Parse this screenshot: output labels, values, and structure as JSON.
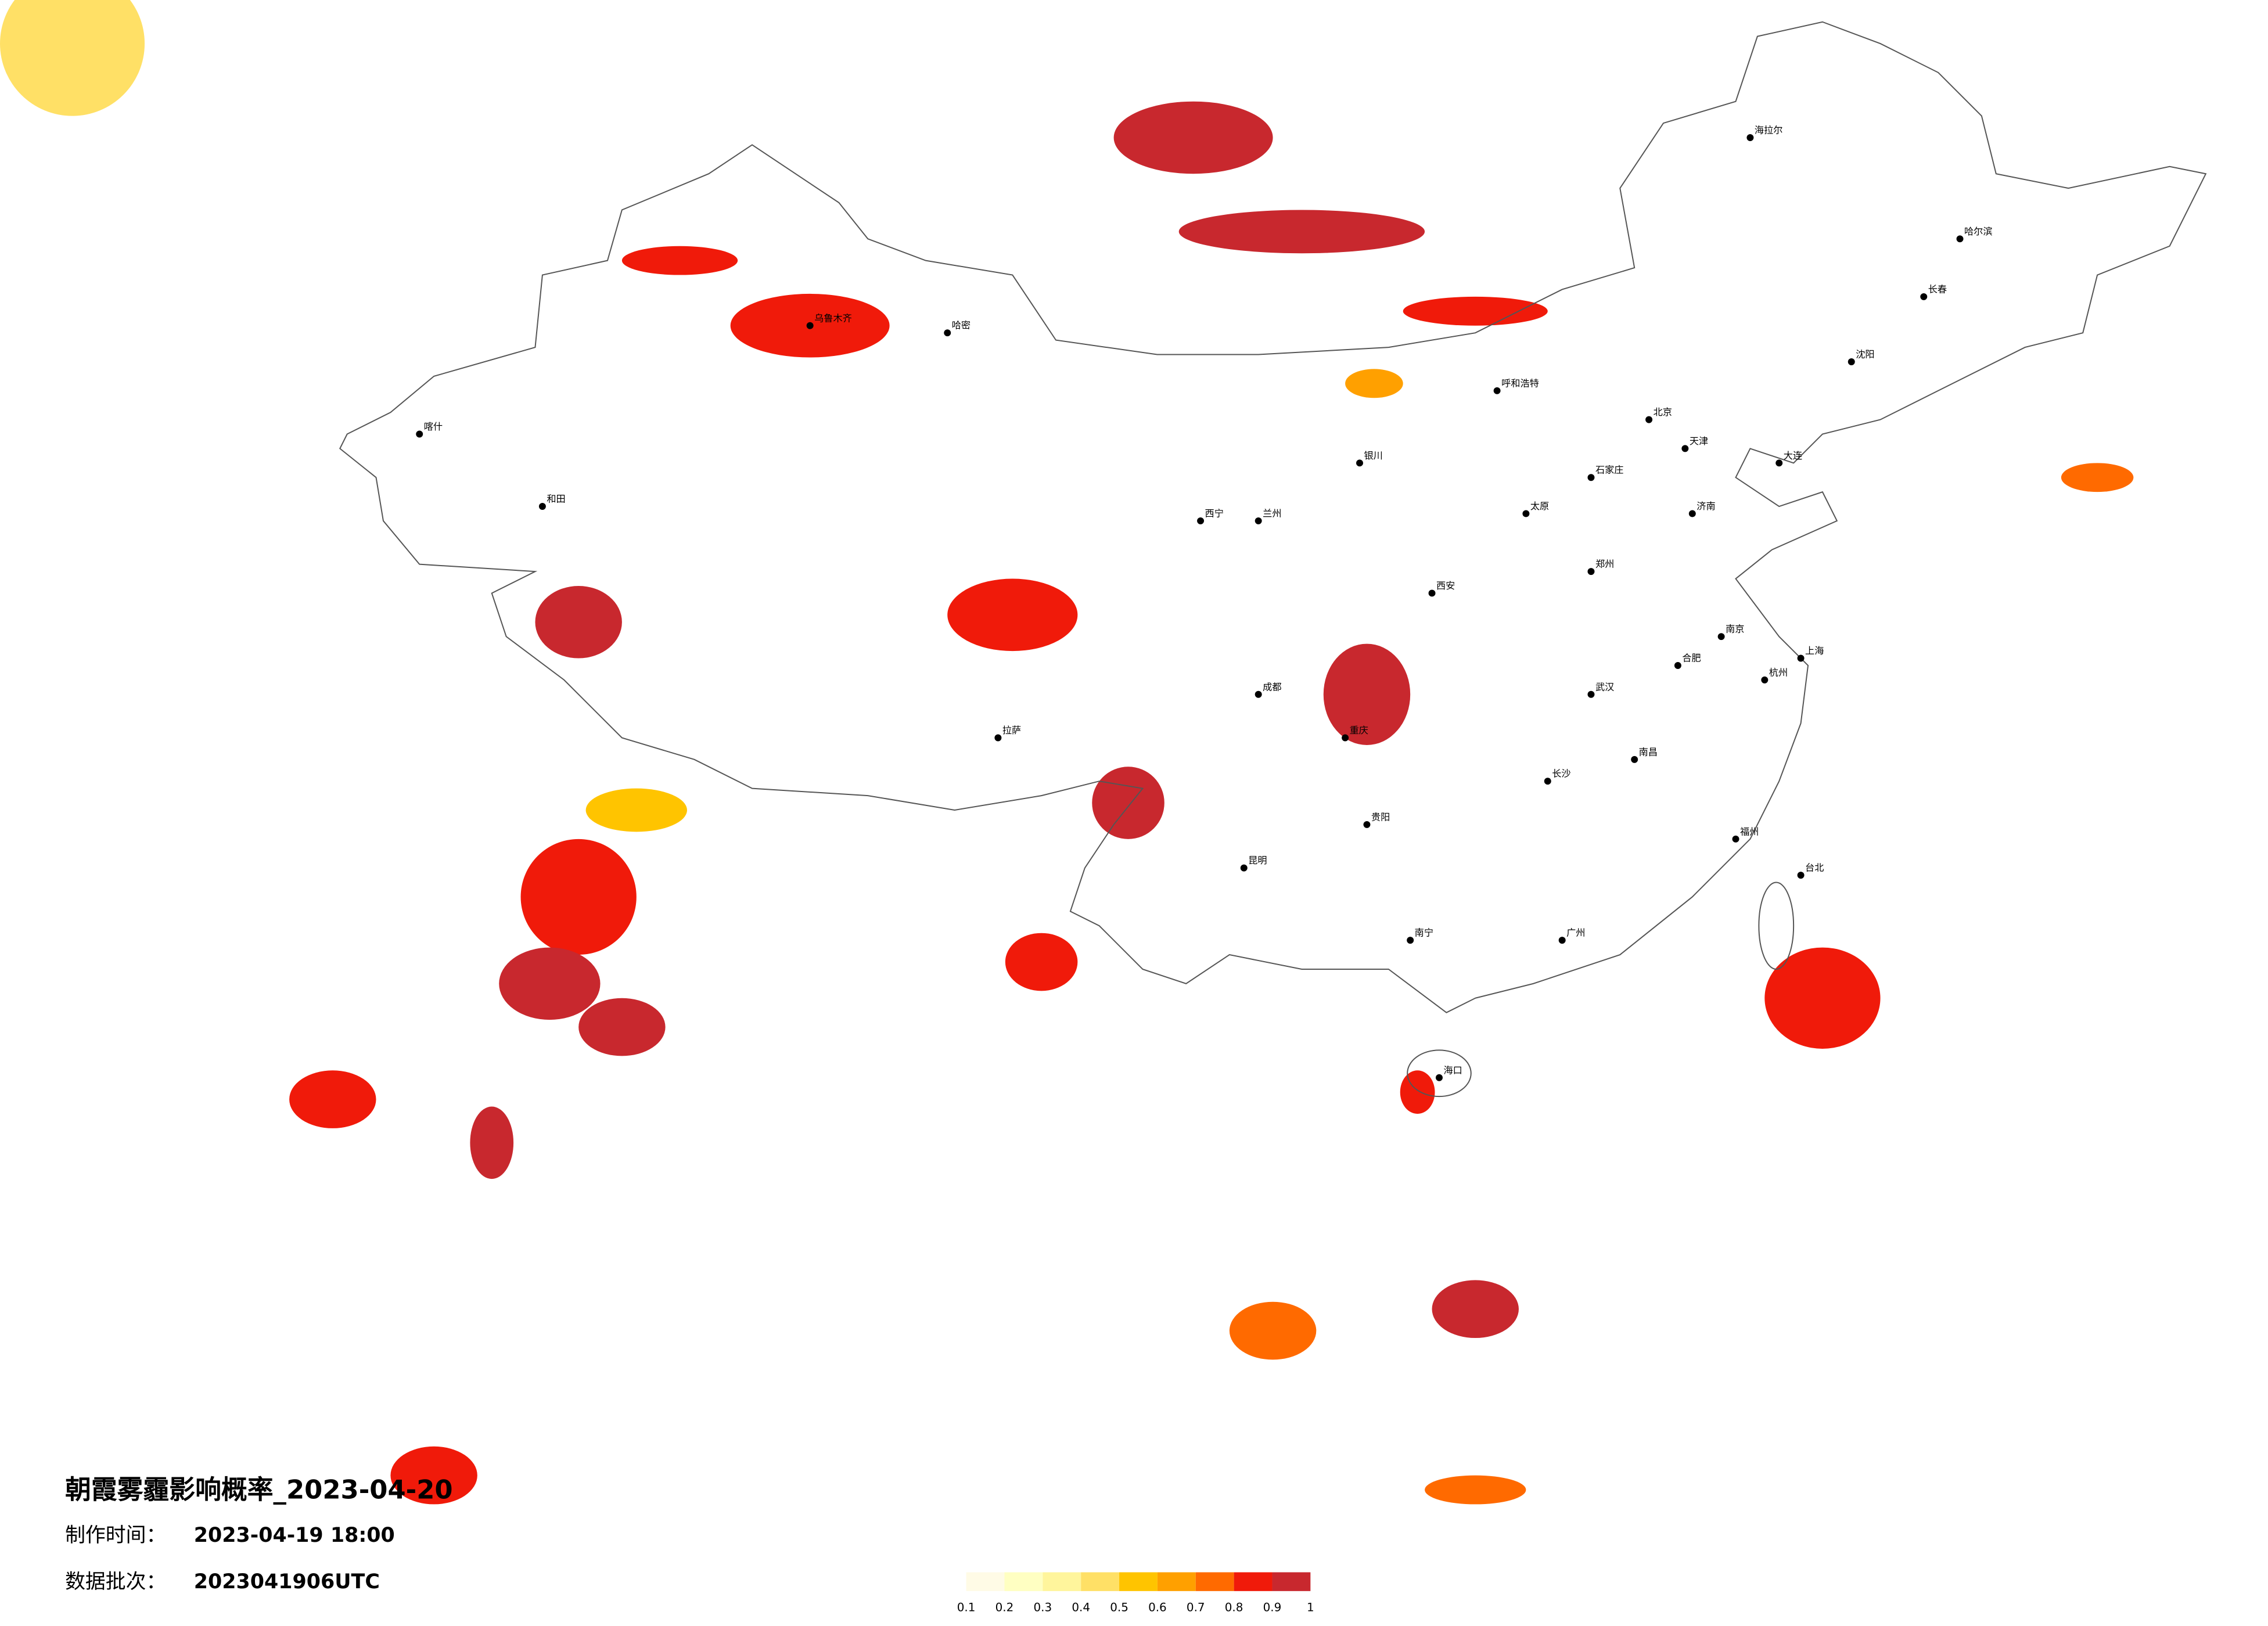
{
  "title": "朝霞雾霾影响概率_2023-04-20",
  "production_time": {
    "label": "制作时间：",
    "value": "2023-04-19 18:00"
  },
  "data_batch": {
    "label": "数据批次：",
    "value": "2023041906UTC"
  },
  "legend": {
    "ticks": [
      0.1,
      0.2,
      0.3,
      0.4,
      0.5,
      0.6,
      0.7,
      0.8,
      0.9,
      1
    ],
    "colors": [
      "#fffbe6",
      "#ffffc2",
      "#fff59c",
      "#ffe066",
      "#ffc400",
      "#ffa000",
      "#ff6a00",
      "#f01a0a",
      "#c8282e"
    ]
  },
  "haze_regions": [
    0.95,
    0.9,
    0.85,
    0.8,
    0.9,
    0.8,
    0.95,
    0.85,
    0.95,
    0.9,
    0.8,
    0.9,
    0.85,
    0.9,
    0.85,
    0.8,
    0.7,
    0.85,
    0.7,
    0.4,
    0.8,
    0.9,
    0.6,
    0.7,
    0.5
  ],
  "cities": [
    "北京",
    "天津",
    "石家庄",
    "太原",
    "呼和浩特",
    "哈尔滨",
    "长春",
    "沈阳",
    "济南",
    "郑州",
    "武汉",
    "长沙",
    "南昌",
    "杭州",
    "上海",
    "南京",
    "合肥",
    "福州",
    "广州",
    "南宁",
    "海口",
    "贵阳",
    "昆明",
    "成都",
    "重庆",
    "西安",
    "兰州",
    "西宁",
    "银川",
    "拉萨",
    "乌鲁木齐",
    "哈密",
    "喀什",
    "和田",
    "台北",
    "海拉尔",
    "大连"
  ]
}
